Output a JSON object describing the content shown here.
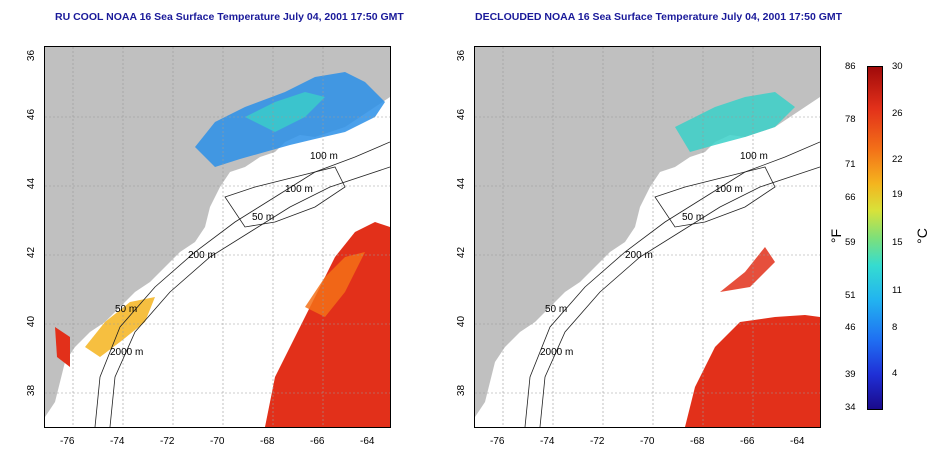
{
  "titles": {
    "left": "RU COOL NOAA 16 Sea Surface Temperature July 04, 2001 17:50 GMT",
    "right": "DECLOUDED NOAA 16 Sea Surface Temperature July 04, 2001 17:50 GMT"
  },
  "axes": {
    "x_ticks": [
      "-76",
      "-74",
      "-72",
      "-70",
      "-68",
      "-66",
      "-64"
    ],
    "y_ticks": [
      "46",
      "44",
      "42",
      "40",
      "38",
      "36"
    ]
  },
  "contour_labels": [
    "100 m",
    "100 m",
    "50 m",
    "200 m",
    "50 m",
    "2000 m"
  ],
  "colorbar": {
    "fahrenheit_ticks": [
      "86",
      "78",
      "71",
      "66",
      "59",
      "51",
      "46",
      "39",
      "34"
    ],
    "celsius_ticks": [
      "30",
      "26",
      "22",
      "19",
      "15",
      "11",
      "8",
      "4"
    ],
    "unit_f": "°F",
    "unit_c": "°C"
  },
  "colors": {
    "land": "#c0c0c0",
    "cold": "#1f6ef2",
    "warm": "#e2301a",
    "title": "#1a1a9a"
  }
}
